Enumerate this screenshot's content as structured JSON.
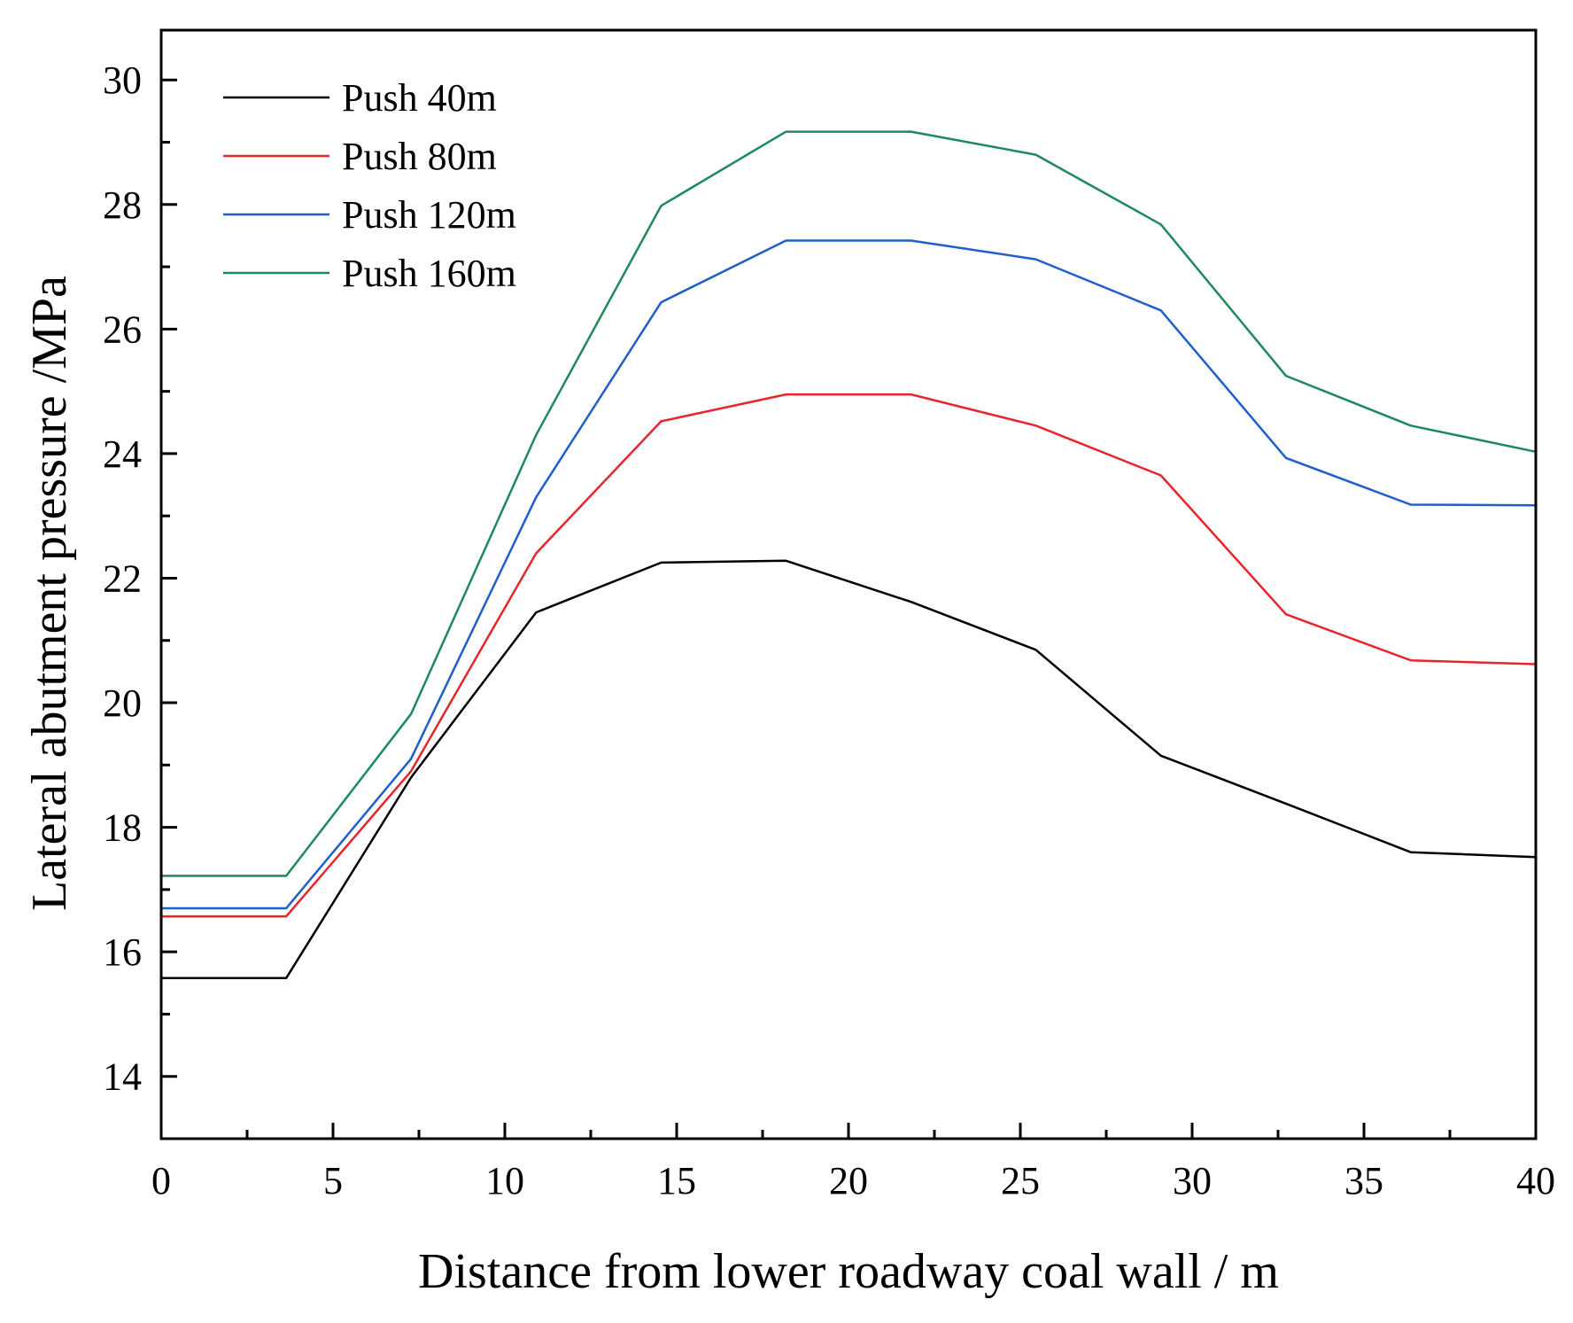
{
  "chart_data": {
    "type": "line",
    "title": "",
    "xlabel": "Distance from lower roadway coal wall / m",
    "ylabel": "Lateral abutment pressure /MPa",
    "xlim": [
      0,
      40
    ],
    "ylim": [
      13,
      30.8
    ],
    "xticks": [
      0,
      5,
      10,
      15,
      20,
      25,
      30,
      35,
      40
    ],
    "yticks": [
      14,
      16,
      18,
      20,
      22,
      24,
      26,
      28,
      30
    ],
    "grid": false,
    "legend_position": "top-left",
    "x": [
      0,
      3.64,
      7.27,
      10.91,
      14.55,
      18.18,
      21.82,
      25.45,
      29.09,
      32.73,
      36.36,
      40
    ],
    "series": [
      {
        "name": "Push 40m",
        "color": "#000000",
        "values": [
          15.58,
          15.58,
          18.8,
          21.45,
          22.25,
          22.28,
          21.62,
          20.85,
          19.15,
          18.38,
          17.6,
          17.52
        ]
      },
      {
        "name": "Push 80m",
        "color": "#e8262a",
        "values": [
          16.57,
          16.57,
          18.9,
          22.4,
          24.52,
          24.95,
          24.95,
          24.45,
          23.65,
          21.42,
          20.68,
          20.62
        ]
      },
      {
        "name": "Push 120m",
        "color": "#1f5fcc",
        "values": [
          16.7,
          16.7,
          19.1,
          23.3,
          26.43,
          27.42,
          27.42,
          27.12,
          26.3,
          23.93,
          23.18,
          23.17
        ]
      },
      {
        "name": "Push 160m",
        "color": "#1e8a5a",
        "values": [
          17.22,
          17.22,
          19.82,
          24.3,
          27.98,
          29.17,
          29.17,
          28.8,
          27.68,
          25.25,
          24.45,
          24.03
        ]
      }
    ]
  }
}
